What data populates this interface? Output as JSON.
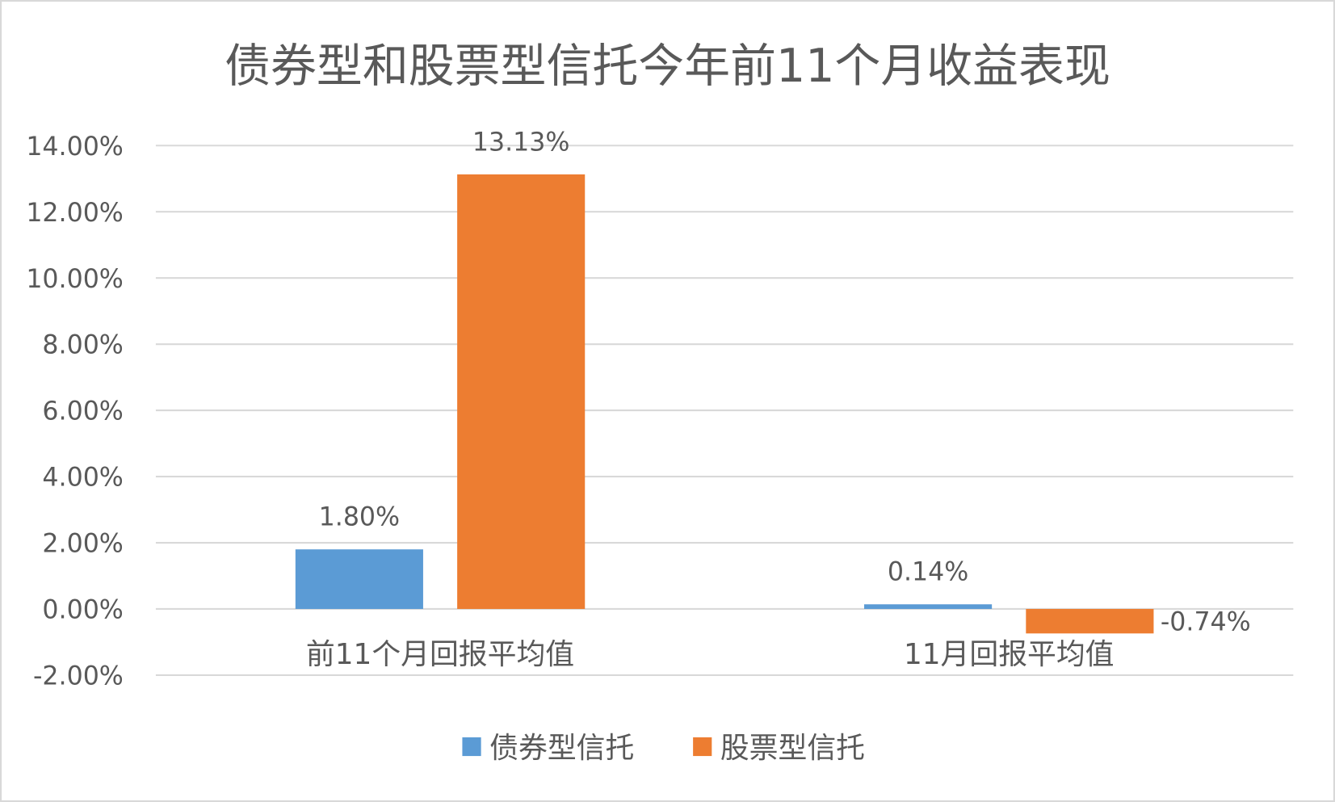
{
  "chart_data": {
    "type": "bar",
    "title": "债券型和股票型信托今年前11个月收益表现",
    "categories": [
      "前11个月回报平均值",
      "11月回报平均值"
    ],
    "series": [
      {
        "name": "债券型信托",
        "values": [
          1.8,
          0.14
        ],
        "labels": [
          "1.80%",
          "0.14%"
        ],
        "color": "#5B9BD5"
      },
      {
        "name": "股票型信托",
        "values": [
          13.13,
          -0.74
        ],
        "labels": [
          "13.13%",
          "-0.74%"
        ],
        "color": "#ED7D31"
      }
    ],
    "ylim": [
      -2,
      14
    ],
    "yticks": [
      -2,
      0,
      2,
      4,
      6,
      8,
      10,
      12,
      14
    ],
    "ytick_labels": [
      "-2.00%",
      "0.00%",
      "2.00%",
      "4.00%",
      "6.00%",
      "8.00%",
      "10.00%",
      "12.00%",
      "14.00%"
    ],
    "grid": true,
    "legend": "bottom",
    "gridline_color": "#D9D9D9"
  }
}
